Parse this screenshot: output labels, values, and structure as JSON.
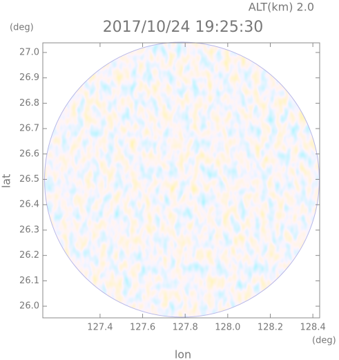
{
  "chart_data": {
    "type": "radar-ppi",
    "title": "2017/10/24 19:25:30",
    "subtitle": "ALT(km) 2.0",
    "x_label": "lon",
    "y_label": "lat",
    "x_unit": "(deg)",
    "y_unit": "(deg)",
    "xlim": [
      127.131,
      128.432
    ],
    "ylim": [
      25.954,
      27.038
    ],
    "xticks": [
      127.4,
      127.6,
      127.8,
      {
        "value": 128.0,
        "label": "128.0"
      },
      128.2,
      128.4
    ],
    "yticks": [
      {
        "value": 26.0,
        "label": "26.0"
      },
      26.1,
      26.2,
      26.3,
      26.4,
      26.5,
      26.6,
      26.7,
      26.8,
      26.9,
      {
        "value": 27.0,
        "label": "27.0"
      }
    ]
  }
}
